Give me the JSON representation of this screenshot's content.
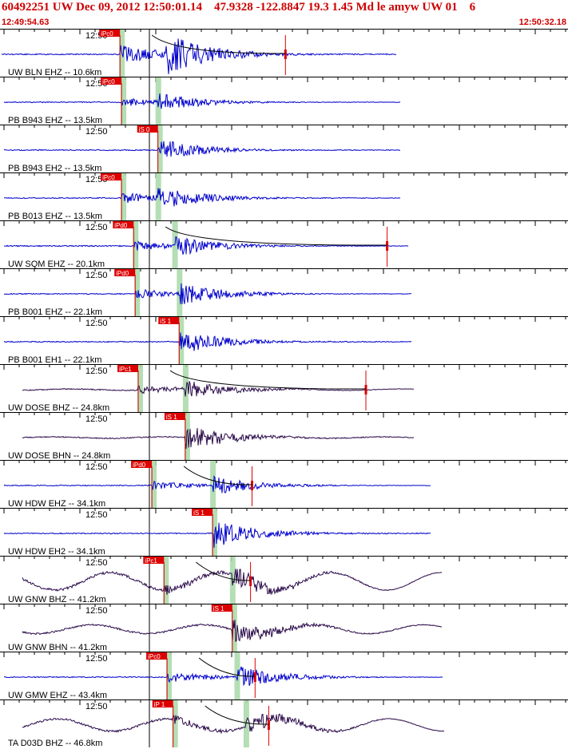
{
  "header": {
    "title": "60492251 UW Dec 09, 2012 12:50:01.14    47.9328 -122.8847 19.3 1.45 Md le amyw UW 01    6",
    "start_time": "12:49:54.63",
    "end_time": "12:50:32.18"
  },
  "colors": {
    "header_text": "#cc0000",
    "trace_short_period": "#0000cc",
    "trace_broadband": "#2a0a4a",
    "pick_box": "#dd0000",
    "pick_line": "#dd0000",
    "pick_window": "#a8d8a8",
    "divider": "#000000"
  },
  "chart_data": {
    "type": "line",
    "title": "60492251 UW Dec 09, 2012 12:50:01.14    47.9328 -122.8847 19.3 1.45 Md le amyw UW 01    6",
    "x_start": "12:49:54.63",
    "x_end": "12:50:32.18",
    "x_tick_label": "12:50",
    "series": [
      {
        "label": "UW BLN EHZ -- 10.6km",
        "pick": "iPc0",
        "color": "#0000cc",
        "kind": "sp",
        "onset_s": 7.8,
        "end_s": 26.0,
        "amp": 1.0,
        "pick_s": 7.8,
        "s_s": null,
        "coda_s": 18.7,
        "noise": 0.0
      },
      {
        "label": "PB B943 EHZ -- 13.5km",
        "pick": "iPc0",
        "color": "#0000cc",
        "kind": "sp",
        "onset_s": 7.9,
        "end_s": 26.3,
        "amp": 0.45,
        "pick_s": 7.9,
        "s_s": 10.3,
        "coda_s": null,
        "noise": 0.0
      },
      {
        "label": "PB B943 EH2 -- 13.5km",
        "pick": "iS 0",
        "color": "#0000cc",
        "kind": "sp",
        "onset_s": 7.9,
        "end_s": 26.3,
        "amp": 0.55,
        "pick_s": 10.3,
        "s_s": 10.3,
        "coda_s": null,
        "noise": 0.0
      },
      {
        "label": "PB B013 EHZ -- 13.5km",
        "pick": "iPc0",
        "color": "#0000cc",
        "kind": "sp",
        "onset_s": 7.9,
        "end_s": 26.3,
        "amp": 0.6,
        "pick_s": 7.9,
        "s_s": 10.3,
        "coda_s": null,
        "noise": 0.0
      },
      {
        "label": "UW SQM EHZ -- 20.1km",
        "pick": "iPd0",
        "color": "#0000cc",
        "kind": "sp",
        "onset_s": 8.7,
        "end_s": 26.8,
        "amp": 0.5,
        "pick_s": 8.7,
        "s_s": 11.4,
        "coda_s": 25.4,
        "noise": 0.05
      },
      {
        "label": "PB B001 EHZ -- 22.1km",
        "pick": "iPd0",
        "color": "#0000cc",
        "kind": "sp",
        "onset_s": 8.8,
        "end_s": 27.0,
        "amp": 0.55,
        "pick_s": 8.8,
        "s_s": 11.7,
        "coda_s": null,
        "noise": 0.0
      },
      {
        "label": "PB B001 EH1 -- 22.1km",
        "pick": "iS 1",
        "color": "#0000cc",
        "kind": "sp",
        "onset_s": 8.8,
        "end_s": 27.0,
        "amp": 0.6,
        "pick_s": 11.7,
        "s_s": 11.7,
        "coda_s": null,
        "noise": 0.0
      },
      {
        "label": "UW DOSE BHZ -- 24.8km",
        "pick": "iPc1",
        "color": "#2a0a4a",
        "kind": "bb",
        "onset_s": 9.0,
        "end_s": 27.2,
        "amp": 0.45,
        "pick_s": 9.0,
        "s_s": 12.1,
        "coda_s": 24.0,
        "noise": 0.04
      },
      {
        "label": "UW DOSE BHN -- 24.8km",
        "pick": "iS 1",
        "color": "#2a0a4a",
        "kind": "bb",
        "onset_s": 9.0,
        "end_s": 27.2,
        "amp": 0.6,
        "pick_s": 12.1,
        "s_s": 12.1,
        "coda_s": null,
        "noise": 0.04
      },
      {
        "label": "UW HDW EHZ -- 34.1km",
        "pick": "iPd0",
        "color": "#0000cc",
        "kind": "sp",
        "onset_s": 9.9,
        "end_s": 28.3,
        "amp": 0.45,
        "pick_s": 9.9,
        "s_s": 13.9,
        "coda_s": 16.5,
        "noise": 0.0
      },
      {
        "label": "UW HDW EH2 -- 34.1km",
        "pick": "iS 1",
        "color": "#0000cc",
        "kind": "sp",
        "onset_s": 9.9,
        "end_s": 28.3,
        "amp": 0.7,
        "pick_s": 13.9,
        "s_s": 13.9,
        "coda_s": null,
        "noise": 0.0
      },
      {
        "label": "UW GNW BHZ -- 41.2km",
        "pick": "iPc1",
        "color": "#2a0a4a",
        "kind": "bb",
        "onset_s": 10.7,
        "end_s": 29.0,
        "amp": 0.55,
        "pick_s": 10.7,
        "s_s": 15.2,
        "coda_s": 16.4,
        "noise": 0.5
      },
      {
        "label": "UW GNW BHN -- 41.2km",
        "pick": "iS 1",
        "color": "#2a0a4a",
        "kind": "bb",
        "onset_s": 10.7,
        "end_s": 29.0,
        "amp": 0.55,
        "pick_s": 15.2,
        "s_s": 15.2,
        "coda_s": null,
        "noise": 0.25
      },
      {
        "label": "UW GMW EHZ -- 43.4km",
        "pick": "iPc0",
        "color": "#0000cc",
        "kind": "sp",
        "onset_s": 10.9,
        "end_s": 29.1,
        "amp": 0.55,
        "pick_s": 10.9,
        "s_s": 15.5,
        "coda_s": 16.7,
        "noise": 0.0
      },
      {
        "label": "TA D03D BHZ -- 46.8km",
        "pick": "iP 1",
        "color": "#2a0a4a",
        "kind": "bb",
        "onset_s": 11.3,
        "end_s": 29.2,
        "amp": 0.5,
        "pick_s": 11.3,
        "s_s": 16.1,
        "coda_s": 17.6,
        "noise": 0.35
      }
    ]
  }
}
